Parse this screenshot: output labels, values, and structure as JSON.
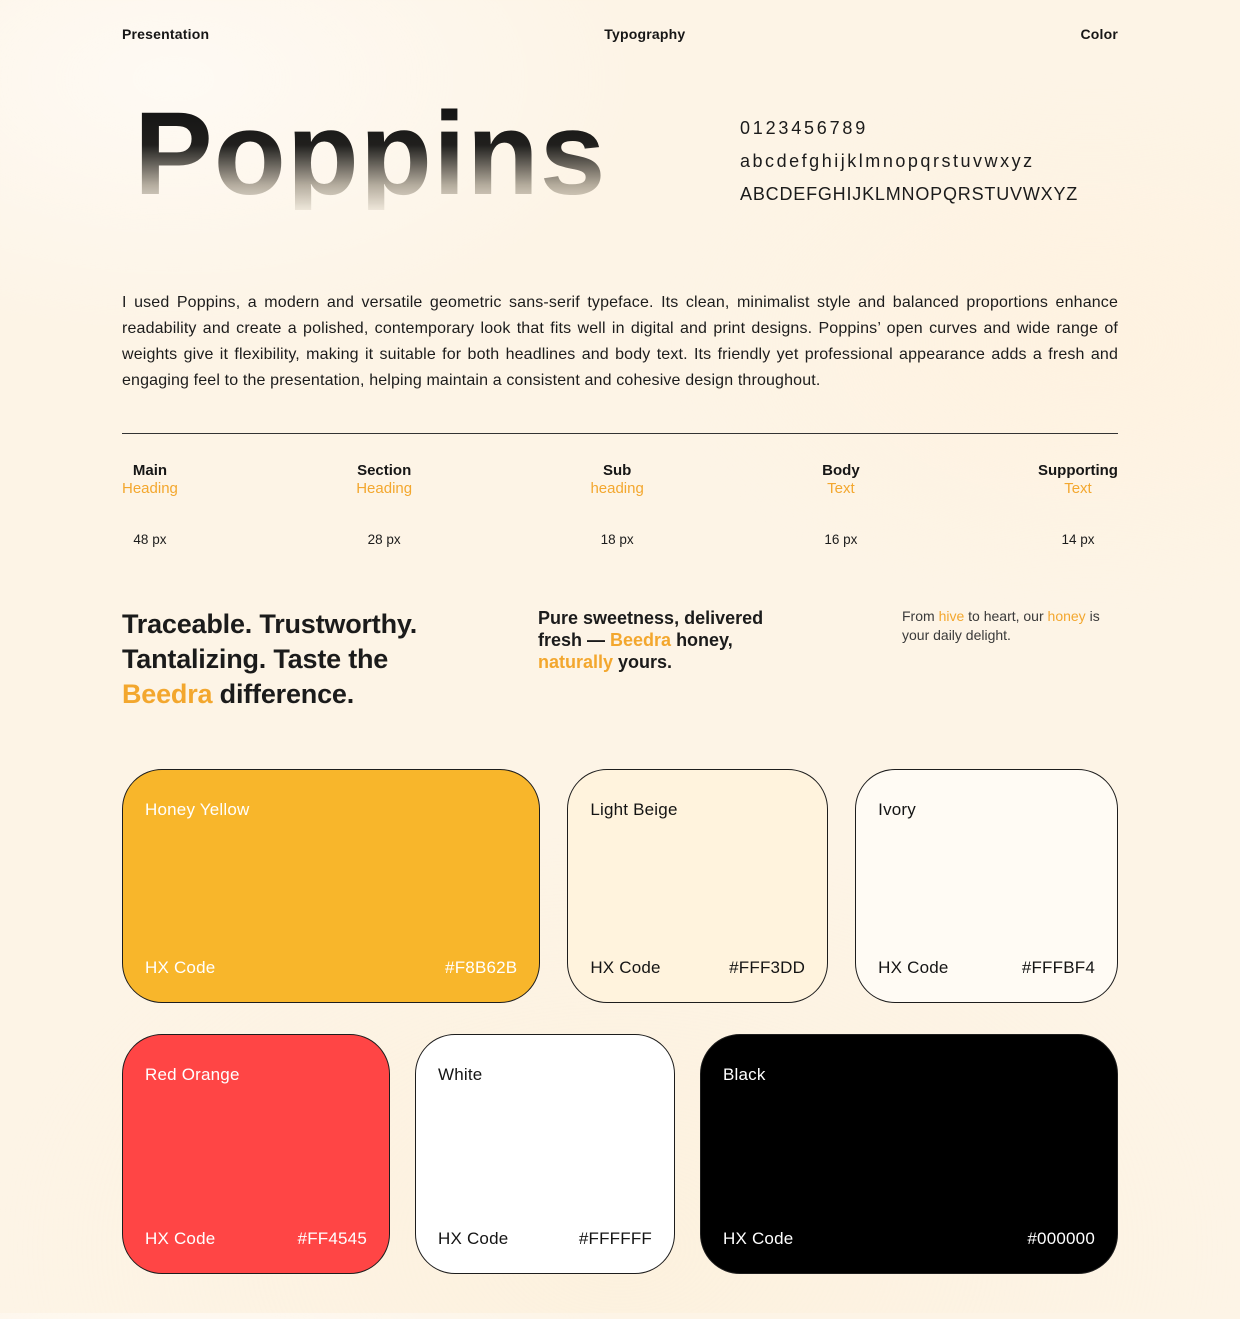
{
  "nav": {
    "presentation": "Presentation",
    "typography": "Typography",
    "color": "Color"
  },
  "specimen": {
    "title": "Poppins",
    "digits": "0123456789",
    "lowercase": "abcdefghijklmnopqrstuvwxyz",
    "uppercase": "ABCDEFGHIJKLMNOPQRSTUVWXYZ"
  },
  "intro": {
    "text": "I used Poppins, a modern and versatile geometric sans-serif typeface. Its clean, minimalist style and balanced proportions enhance readability and create a polished, contemporary look that fits well in digital and print designs. Poppins’ open curves and wide range of weights give it flexibility, making it suitable for both headlines and body text. Its friendly yet professional appearance adds a fresh and engaging feel to the presentation, helping maintain a consistent and cohesive design throughout."
  },
  "type_scale": {
    "columns": [
      {
        "line1": "Main",
        "line2": "Heading",
        "size": "48 px"
      },
      {
        "line1": "Section",
        "line2": "Heading",
        "size": "28 px"
      },
      {
        "line1": "Sub",
        "line2": "heading",
        "size": "18 px"
      },
      {
        "line1": "Body",
        "line2": "Text",
        "size": "16 px"
      },
      {
        "line1": "Supporting",
        "line2": "Text",
        "size": "14 px"
      }
    ]
  },
  "samples": {
    "main": {
      "pre": "Traceable. Trustworthy. Tantalizing. Taste the ",
      "accent": "Beedra",
      "post": " difference."
    },
    "sub": {
      "pre": "Pure sweetness, delivered fresh — ",
      "accent1": "Beedra",
      "mid": " honey, ",
      "accent2": "naturally",
      "post": " yours."
    },
    "supporting": {
      "pre": "From ",
      "accent1": "hive",
      "mid": " to heart, our ",
      "accent2": "honey",
      "post": " is your daily delight."
    }
  },
  "palette": {
    "hx_label": "HX Code",
    "cards": [
      {
        "name": "Honey Yellow",
        "hex": "#F8B62B"
      },
      {
        "name": "Light Beige",
        "hex": "#FFF3DD"
      },
      {
        "name": "Ivory",
        "hex": "#FFFBF4"
      },
      {
        "name": "Red Orange",
        "hex": "#FF4545"
      },
      {
        "name": "White",
        "hex": "#FFFFFF"
      },
      {
        "name": "Black",
        "hex": "#000000"
      }
    ]
  },
  "theme": {
    "accent_text": "#F3A72E",
    "ink": "#1A1A1A",
    "background": "#FDF4E6"
  }
}
